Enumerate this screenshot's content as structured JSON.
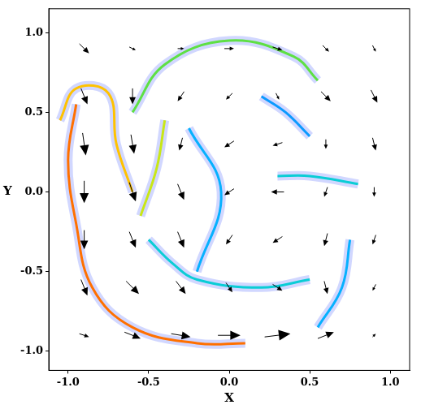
{
  "chart_data": {
    "type": "vector_field",
    "x_label": "X",
    "y_label": "Y",
    "xlim": [
      -1.12,
      1.12
    ],
    "ylim": [
      -1.12,
      1.15
    ],
    "xticks": [
      {
        "value": -1,
        "label": "-1.0"
      },
      {
        "value": -0.5,
        "label": "-0.5"
      },
      {
        "value": 0,
        "label": "0.0"
      },
      {
        "value": 0.5,
        "label": "0.5"
      },
      {
        "value": 1,
        "label": "1.0"
      }
    ],
    "yticks": [
      {
        "value": -1,
        "label": "-1.0"
      },
      {
        "value": -0.5,
        "label": "-0.5"
      },
      {
        "value": 0,
        "label": "0.0"
      },
      {
        "value": 0.5,
        "label": "0.5"
      },
      {
        "value": 1,
        "label": "1.0"
      }
    ],
    "grid": false,
    "arrows": [
      [
        -0.9,
        0.9,
        0.3,
        -0.3
      ],
      [
        -0.6,
        0.9,
        0.2,
        -0.1
      ],
      [
        -0.3,
        0.9,
        0.2,
        0
      ],
      [
        0,
        0.9,
        0.3,
        0
      ],
      [
        0.3,
        0.9,
        0.3,
        -0.1
      ],
      [
        0.6,
        0.9,
        0.2,
        -0.2
      ],
      [
        0.9,
        0.9,
        0.1,
        -0.2
      ],
      [
        -0.9,
        0.6,
        0.2,
        -0.5
      ],
      [
        -0.6,
        0.6,
        0,
        -0.5
      ],
      [
        -0.3,
        0.6,
        -0.2,
        -0.3
      ],
      [
        0,
        0.6,
        -0.2,
        -0.2
      ],
      [
        0.3,
        0.6,
        0.1,
        -0.2
      ],
      [
        0.6,
        0.6,
        0.3,
        -0.3
      ],
      [
        0.9,
        0.6,
        0.2,
        -0.4
      ],
      [
        -0.9,
        0.3,
        0.1,
        -0.7
      ],
      [
        -0.6,
        0.3,
        0.1,
        -0.6
      ],
      [
        -0.3,
        0.3,
        -0.1,
        -0.4
      ],
      [
        0,
        0.3,
        -0.3,
        -0.2
      ],
      [
        0.3,
        0.3,
        -0.3,
        -0.1
      ],
      [
        0.6,
        0.3,
        0,
        -0.3
      ],
      [
        0.9,
        0.3,
        0.1,
        -0.4
      ],
      [
        -0.9,
        0,
        0,
        -0.7
      ],
      [
        -0.6,
        0,
        0.2,
        -0.6
      ],
      [
        -0.3,
        0,
        0.2,
        -0.5
      ],
      [
        0,
        0,
        -0.3,
        -0.2
      ],
      [
        0.3,
        0,
        -0.4,
        0
      ],
      [
        0.6,
        0,
        -0.1,
        -0.3
      ],
      [
        0.9,
        0,
        0,
        -0.3
      ],
      [
        -0.9,
        -0.3,
        0,
        -0.6
      ],
      [
        -0.6,
        -0.3,
        0.2,
        -0.5
      ],
      [
        -0.3,
        -0.3,
        0.2,
        -0.5
      ],
      [
        0,
        -0.3,
        -0.2,
        -0.3
      ],
      [
        0.3,
        -0.3,
        -0.3,
        -0.2
      ],
      [
        0.6,
        -0.3,
        -0.1,
        -0.4
      ],
      [
        0.9,
        -0.3,
        -0.1,
        -0.3
      ],
      [
        -0.9,
        -0.6,
        0.2,
        -0.5
      ],
      [
        -0.6,
        -0.6,
        0.4,
        -0.4
      ],
      [
        -0.3,
        -0.6,
        0.3,
        -0.4
      ],
      [
        0,
        -0.6,
        0.2,
        -0.3
      ],
      [
        0.3,
        -0.6,
        0.3,
        -0.2
      ],
      [
        0.6,
        -0.6,
        0.1,
        -0.4
      ],
      [
        0.9,
        -0.6,
        -0.1,
        -0.2
      ],
      [
        -0.9,
        -0.9,
        0.3,
        -0.1
      ],
      [
        -0.6,
        -0.9,
        0.5,
        -0.2
      ],
      [
        -0.3,
        -0.9,
        0.6,
        -0.1
      ],
      [
        0,
        -0.9,
        0.7,
        0
      ],
      [
        0.3,
        -0.9,
        0.8,
        0.1
      ],
      [
        0.6,
        -0.9,
        0.5,
        0.2
      ],
      [
        0.9,
        -0.9,
        0.1,
        0.1
      ]
    ],
    "filaments": [
      {
        "x": [
          -0.6,
          -0.4,
          0,
          0.4,
          0.55
        ],
        "y": [
          0.5,
          0.8,
          0.95,
          0.85,
          0.7
        ],
        "intensity": 0.6
      },
      {
        "x": [
          -0.95,
          -1.0,
          -0.95,
          -0.85,
          -0.6,
          -0.2,
          0.1
        ],
        "y": [
          0.55,
          0.2,
          -0.2,
          -0.6,
          -0.85,
          -0.95,
          -0.95
        ],
        "intensity": 0.9
      },
      {
        "x": [
          -1.05,
          -0.95,
          -0.75,
          -0.7,
          -0.6
        ],
        "y": [
          0.45,
          0.65,
          0.62,
          0.3,
          0
        ],
        "intensity": 0.8
      },
      {
        "x": [
          -0.4,
          -0.45,
          -0.55
        ],
        "y": [
          0.45,
          0.15,
          -0.15
        ],
        "intensity": 0.7
      },
      {
        "x": [
          -0.5,
          -0.35,
          -0.2,
          0.2,
          0.5
        ],
        "y": [
          -0.3,
          -0.45,
          -0.55,
          -0.6,
          -0.55
        ],
        "intensity": 0.4
      },
      {
        "x": [
          0.55,
          0.7,
          0.75
        ],
        "y": [
          -0.85,
          -0.6,
          -0.3
        ],
        "intensity": 0.3
      },
      {
        "x": [
          0.3,
          0.5,
          0.8
        ],
        "y": [
          0.1,
          0.1,
          0.05
        ],
        "intensity": 0.4
      },
      {
        "x": [
          0.2,
          0.35,
          0.5
        ],
        "y": [
          0.6,
          0.5,
          0.35
        ],
        "intensity": 0.25
      },
      {
        "x": [
          -0.25,
          -0.05,
          -0.2
        ],
        "y": [
          0.4,
          0.0,
          -0.5
        ],
        "intensity": 0.3
      }
    ]
  }
}
